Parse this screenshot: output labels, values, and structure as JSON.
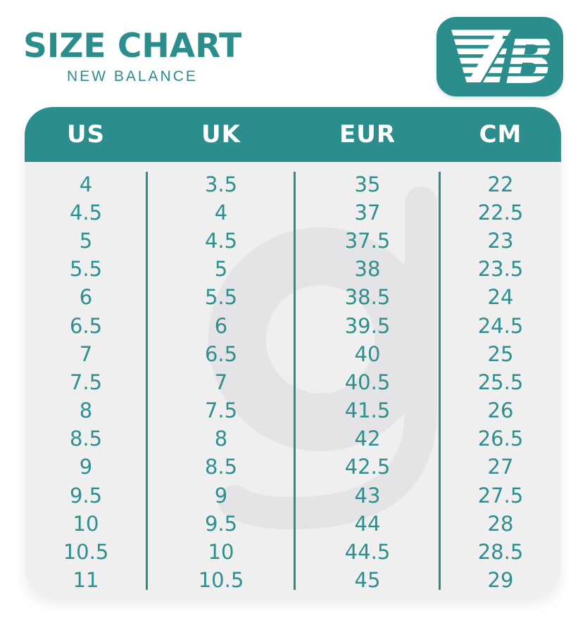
{
  "page": {
    "title": "SIZE CHART",
    "subtitle": "NEW BALANCE",
    "watermark_glyph": "g"
  },
  "header": {
    "logo_icon": "new-balance-nb-logo"
  },
  "colors": {
    "teal": "#2b8d8c",
    "teal_text": "#2f8f8e",
    "header_text": "#ffffff",
    "card_bg": "#efeff0",
    "watermark": "#e4e4e6",
    "page_bg": "#ffffff"
  },
  "chart_data": {
    "type": "table",
    "title": "SIZE CHART",
    "subtitle": "NEW BALANCE",
    "columns": [
      "US",
      "UK",
      "EUR",
      "CM"
    ],
    "rows": [
      [
        "4",
        "3.5",
        "35",
        "22"
      ],
      [
        "4.5",
        "4",
        "37",
        "22.5"
      ],
      [
        "5",
        "4.5",
        "37.5",
        "23"
      ],
      [
        "5.5",
        "5",
        "38",
        "23.5"
      ],
      [
        "6",
        "5.5",
        "38.5",
        "24"
      ],
      [
        "6.5",
        "6",
        "39.5",
        "24.5"
      ],
      [
        "7",
        "6.5",
        "40",
        "25"
      ],
      [
        "7.5",
        "7",
        "40.5",
        "25.5"
      ],
      [
        "8",
        "7.5",
        "41.5",
        "26"
      ],
      [
        "8.5",
        "8",
        "42",
        "26.5"
      ],
      [
        "9",
        "8.5",
        "42.5",
        "27"
      ],
      [
        "9.5",
        "9",
        "43",
        "27.5"
      ],
      [
        "10",
        "9.5",
        "44",
        "28"
      ],
      [
        "10.5",
        "10",
        "44.5",
        "28.5"
      ],
      [
        "11",
        "10.5",
        "45",
        "29"
      ]
    ]
  }
}
